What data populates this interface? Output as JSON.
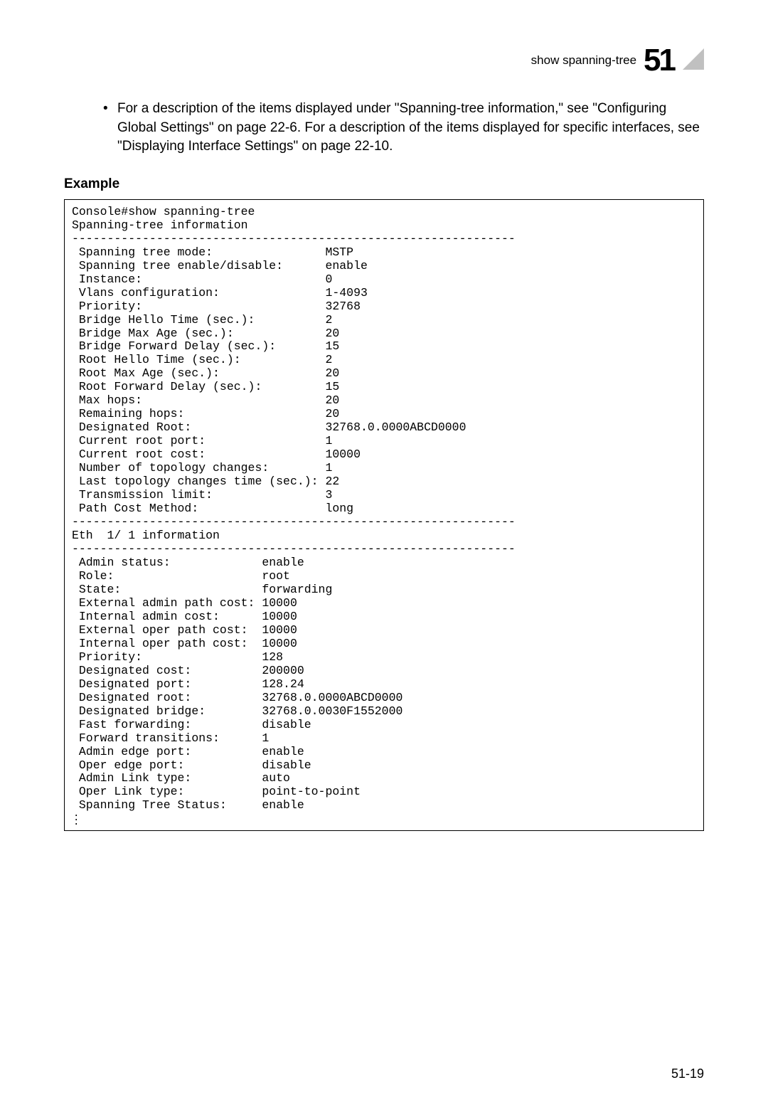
{
  "header": {
    "title": "show spanning-tree",
    "chapter": "51"
  },
  "body": {
    "bullet_text": "For a description of the items displayed under \"Spanning-tree information,\" see \"Configuring Global Settings\" on page 22-6. For a description of the items displayed for specific interfaces, see \"Displaying Interface Settings\" on page 22-10."
  },
  "example": {
    "heading": "Example",
    "console_cmd": "Console#show spanning-tree",
    "info_title": "Spanning-tree information",
    "divider": "---------------------------------------------------------------",
    "global": [
      {
        "label": " Spanning tree mode:",
        "value": "MSTP"
      },
      {
        "label": " Spanning tree enable/disable:",
        "value": "enable"
      },
      {
        "label": " Instance:",
        "value": "0"
      },
      {
        "label": " Vlans configuration:",
        "value": "1-4093"
      },
      {
        "label": " Priority:",
        "value": "32768"
      },
      {
        "label": " Bridge Hello Time (sec.):",
        "value": "2"
      },
      {
        "label": " Bridge Max Age (sec.):",
        "value": "20"
      },
      {
        "label": " Bridge Forward Delay (sec.):",
        "value": "15"
      },
      {
        "label": " Root Hello Time (sec.):",
        "value": "2"
      },
      {
        "label": " Root Max Age (sec.):",
        "value": "20"
      },
      {
        "label": " Root Forward Delay (sec.):",
        "value": "15"
      },
      {
        "label": " Max hops:",
        "value": "20"
      },
      {
        "label": " Remaining hops:",
        "value": "20"
      },
      {
        "label": " Designated Root:",
        "value": "32768.0.0000ABCD0000"
      },
      {
        "label": " Current root port:",
        "value": "1"
      },
      {
        "label": " Current root cost:",
        "value": "10000"
      },
      {
        "label": " Number of topology changes:",
        "value": "1"
      },
      {
        "label": " Last topology changes time (sec.):",
        "value": "22"
      },
      {
        "label": " Transmission limit:",
        "value": "3"
      },
      {
        "label": " Path Cost Method:",
        "value": "long"
      }
    ],
    "global_label_width": 36,
    "eth_title": "Eth  1/ 1 information",
    "eth": [
      {
        "label": " Admin status:",
        "value": "enable"
      },
      {
        "label": " Role:",
        "value": "root"
      },
      {
        "label": " State:",
        "value": "forwarding"
      },
      {
        "label": " External admin path cost:",
        "value": "10000"
      },
      {
        "label": " Internal admin cost:",
        "value": "10000"
      },
      {
        "label": " External oper path cost:",
        "value": "10000"
      },
      {
        "label": " Internal oper path cost:",
        "value": "10000"
      },
      {
        "label": " Priority:",
        "value": "128"
      },
      {
        "label": " Designated cost:",
        "value": "200000"
      },
      {
        "label": " Designated port:",
        "value": "128.24"
      },
      {
        "label": " Designated root:",
        "value": "32768.0.0000ABCD0000"
      },
      {
        "label": " Designated bridge:",
        "value": "32768.0.0030F1552000"
      },
      {
        "label": " Fast forwarding:",
        "value": "disable"
      },
      {
        "label": " Forward transitions:",
        "value": "1"
      },
      {
        "label": " Admin edge port:",
        "value": "enable"
      },
      {
        "label": " Oper edge port:",
        "value": "disable"
      },
      {
        "label": " Admin Link type:",
        "value": "auto"
      },
      {
        "label": " Oper Link type:",
        "value": "point-to-point"
      },
      {
        "label": " Spanning Tree Status:",
        "value": "enable"
      }
    ],
    "eth_label_width": 27
  },
  "footer": {
    "page_number": "51-19"
  }
}
